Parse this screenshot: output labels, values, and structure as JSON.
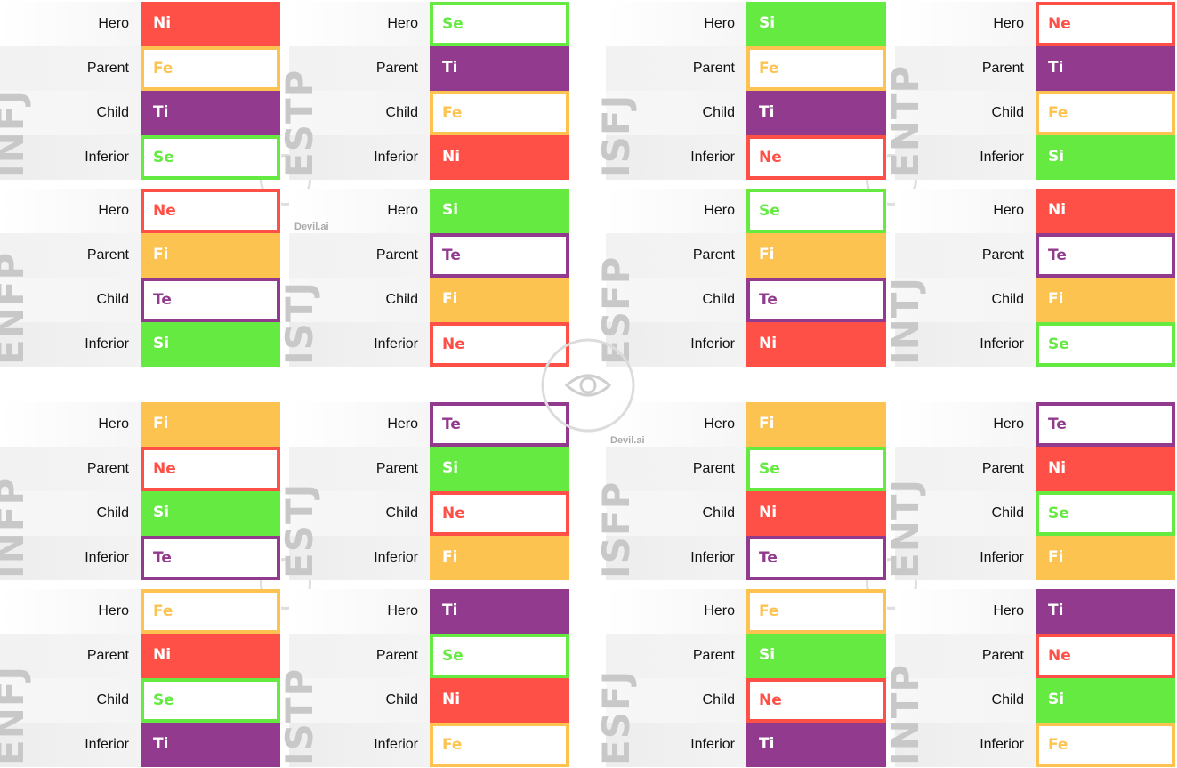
{
  "colors": {
    "Ni": "#ff5047",
    "Ne": "#ff5047",
    "Fi": "#fdc351",
    "Fe": "#fdc351",
    "Ti": "#913a8e",
    "Te": "#913a8e",
    "Si": "#64ea40",
    "Se": "#64ea40"
  },
  "row_labels": [
    "Hero",
    "Parent",
    "Child",
    "Inferior"
  ],
  "watermark": "Devil.ai",
  "cards": [
    {
      "type": "INFJ",
      "functions": [
        {
          "fn": "Ni",
          "style": "filled"
        },
        {
          "fn": "Fe",
          "style": "outline"
        },
        {
          "fn": "Ti",
          "style": "filled"
        },
        {
          "fn": "Se",
          "style": "outline"
        }
      ]
    },
    {
      "type": "ESTP",
      "functions": [
        {
          "fn": "Se",
          "style": "outline"
        },
        {
          "fn": "Ti",
          "style": "filled"
        },
        {
          "fn": "Fe",
          "style": "outline"
        },
        {
          "fn": "Ni",
          "style": "filled"
        }
      ]
    },
    {
      "type": "ISFJ",
      "functions": [
        {
          "fn": "Si",
          "style": "filled"
        },
        {
          "fn": "Fe",
          "style": "outline"
        },
        {
          "fn": "Ti",
          "style": "filled"
        },
        {
          "fn": "Ne",
          "style": "outline"
        }
      ]
    },
    {
      "type": "ENTP",
      "functions": [
        {
          "fn": "Ne",
          "style": "outline"
        },
        {
          "fn": "Ti",
          "style": "filled"
        },
        {
          "fn": "Fe",
          "style": "outline"
        },
        {
          "fn": "Si",
          "style": "filled"
        }
      ]
    },
    {
      "type": "ENFP",
      "functions": [
        {
          "fn": "Ne",
          "style": "outline"
        },
        {
          "fn": "Fi",
          "style": "filled"
        },
        {
          "fn": "Te",
          "style": "outline"
        },
        {
          "fn": "Si",
          "style": "filled"
        }
      ]
    },
    {
      "type": "ISTJ",
      "functions": [
        {
          "fn": "Si",
          "style": "filled"
        },
        {
          "fn": "Te",
          "style": "outline"
        },
        {
          "fn": "Fi",
          "style": "filled"
        },
        {
          "fn": "Ne",
          "style": "outline"
        }
      ]
    },
    {
      "type": "ESFP",
      "functions": [
        {
          "fn": "Se",
          "style": "outline"
        },
        {
          "fn": "Fi",
          "style": "filled"
        },
        {
          "fn": "Te",
          "style": "outline"
        },
        {
          "fn": "Ni",
          "style": "filled"
        }
      ]
    },
    {
      "type": "INTJ",
      "functions": [
        {
          "fn": "Ni",
          "style": "filled"
        },
        {
          "fn": "Te",
          "style": "outline"
        },
        {
          "fn": "Fi",
          "style": "filled"
        },
        {
          "fn": "Se",
          "style": "outline"
        }
      ]
    },
    {
      "type": "INFP",
      "functions": [
        {
          "fn": "Fi",
          "style": "filled"
        },
        {
          "fn": "Ne",
          "style": "outline"
        },
        {
          "fn": "Si",
          "style": "filled"
        },
        {
          "fn": "Te",
          "style": "outline"
        }
      ]
    },
    {
      "type": "ESTJ",
      "functions": [
        {
          "fn": "Te",
          "style": "outline"
        },
        {
          "fn": "Si",
          "style": "filled"
        },
        {
          "fn": "Ne",
          "style": "outline"
        },
        {
          "fn": "Fi",
          "style": "filled"
        }
      ]
    },
    {
      "type": "ISFP",
      "functions": [
        {
          "fn": "Fi",
          "style": "filled"
        },
        {
          "fn": "Se",
          "style": "outline"
        },
        {
          "fn": "Ni",
          "style": "filled"
        },
        {
          "fn": "Te",
          "style": "outline"
        }
      ]
    },
    {
      "type": "ENTJ",
      "functions": [
        {
          "fn": "Te",
          "style": "outline"
        },
        {
          "fn": "Ni",
          "style": "filled"
        },
        {
          "fn": "Se",
          "style": "outline"
        },
        {
          "fn": "Fi",
          "style": "filled"
        }
      ]
    },
    {
      "type": "ENFJ",
      "functions": [
        {
          "fn": "Fe",
          "style": "outline"
        },
        {
          "fn": "Ni",
          "style": "filled"
        },
        {
          "fn": "Se",
          "style": "outline"
        },
        {
          "fn": "Ti",
          "style": "filled"
        }
      ]
    },
    {
      "type": "ISTP",
      "functions": [
        {
          "fn": "Ti",
          "style": "filled"
        },
        {
          "fn": "Se",
          "style": "outline"
        },
        {
          "fn": "Ni",
          "style": "filled"
        },
        {
          "fn": "Fe",
          "style": "outline"
        }
      ]
    },
    {
      "type": "ESFJ",
      "functions": [
        {
          "fn": "Fe",
          "style": "outline"
        },
        {
          "fn": "Si",
          "style": "filled"
        },
        {
          "fn": "Ne",
          "style": "outline"
        },
        {
          "fn": "Ti",
          "style": "filled"
        }
      ]
    },
    {
      "type": "INTP",
      "functions": [
        {
          "fn": "Ti",
          "style": "filled"
        },
        {
          "fn": "Ne",
          "style": "outline"
        },
        {
          "fn": "Si",
          "style": "filled"
        },
        {
          "fn": "Fe",
          "style": "outline"
        }
      ]
    }
  ]
}
